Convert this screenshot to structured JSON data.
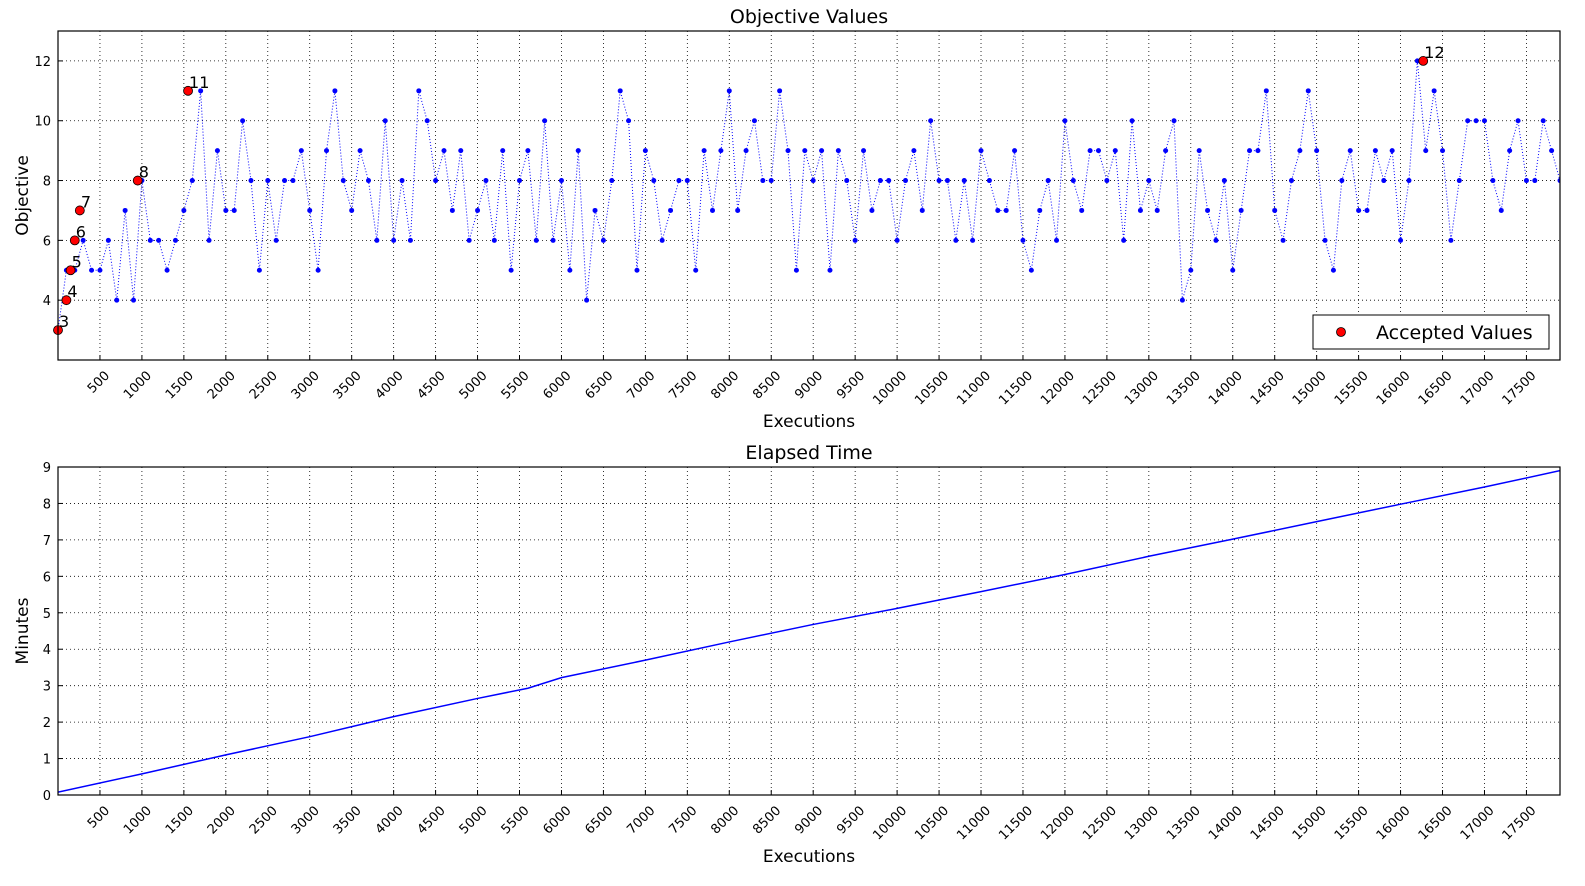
{
  "chart_data": [
    {
      "type": "line",
      "title": "Objective Values",
      "xlabel": "Executions",
      "ylabel": "Objective",
      "xlim": [
        0,
        17900
      ],
      "ylim": [
        2,
        13
      ],
      "xticks": [
        500,
        1000,
        1500,
        2000,
        2500,
        3000,
        3500,
        4000,
        4500,
        5000,
        5500,
        6000,
        6500,
        7000,
        7500,
        8000,
        8500,
        9000,
        9500,
        10000,
        10500,
        11000,
        11500,
        12000,
        12500,
        13000,
        13500,
        14000,
        14500,
        15000,
        15500,
        16000,
        16500,
        17000,
        17500
      ],
      "yticks": [
        4,
        6,
        8,
        10,
        12
      ],
      "grid": true,
      "legend": "lower right",
      "series": [
        {
          "color": "#0000ff",
          "linestyle": "dotted",
          "marker": true,
          "x": [
            0,
            100,
            200,
            300,
            400,
            500,
            600,
            700,
            800,
            900,
            1000,
            1100,
            1200,
            1300,
            1400,
            1500,
            1600,
            1700,
            1800,
            1900,
            2000,
            2100,
            2200,
            2300,
            2400,
            2500,
            2600,
            2700,
            2800,
            2900,
            3000,
            3100,
            3200,
            3300,
            3400,
            3500,
            3600,
            3700,
            3800,
            3900,
            4000,
            4100,
            4200,
            4300,
            4400,
            4500,
            4600,
            4700,
            4800,
            4900,
            5000,
            5100,
            5200,
            5300,
            5400,
            5500,
            5600,
            5700,
            5800,
            5900,
            6000,
            6100,
            6200,
            6300,
            6400,
            6500,
            6600,
            6700,
            6800,
            6900,
            7000,
            7100,
            7200,
            7300,
            7400,
            7500,
            7600,
            7700,
            7800,
            7900,
            8000,
            8100,
            8200,
            8300,
            8400,
            8500,
            8600,
            8700,
            8800,
            8900,
            9000,
            9100,
            9200,
            9300,
            9400,
            9500,
            9600,
            9700,
            9800,
            9900,
            10000,
            10100,
            10200,
            10300,
            10400,
            10500,
            10600,
            10700,
            10800,
            10900,
            11000,
            11100,
            11200,
            11300,
            11400,
            11500,
            11600,
            11700,
            11800,
            11900,
            12000,
            12100,
            12200,
            12300,
            12400,
            12500,
            12600,
            12700,
            12800,
            12900,
            13000,
            13100,
            13200,
            13300,
            13400,
            13500,
            13600,
            13700,
            13800,
            13900,
            14000,
            14100,
            14200,
            14300,
            14400,
            14500,
            14600,
            14700,
            14800,
            14900,
            15000,
            15100,
            15200,
            15300,
            15400,
            15500,
            15600,
            15700,
            15800,
            15900,
            16000,
            16100,
            16200,
            16300,
            16400,
            16500,
            16600,
            16700,
            16800,
            16900,
            17000,
            17100,
            17200,
            17300,
            17400,
            17500,
            17600,
            17700,
            17800,
            17900
          ],
          "values": [
            3,
            5,
            5,
            6,
            5,
            5,
            6,
            4,
            7,
            4,
            8,
            6,
            6,
            5,
            6,
            7,
            8,
            11,
            6,
            9,
            7,
            7,
            10,
            8,
            5,
            8,
            6,
            8,
            8,
            9,
            7,
            5,
            9,
            11,
            8,
            7,
            9,
            8,
            6,
            10,
            6,
            8,
            6,
            11,
            10,
            8,
            9,
            7,
            9,
            6,
            7,
            8,
            6,
            9,
            5,
            8,
            9,
            6,
            10,
            6,
            8,
            5,
            9,
            4,
            7,
            6,
            8,
            11,
            10,
            5,
            9,
            8,
            6,
            7,
            8,
            8,
            5,
            9,
            7,
            9,
            11,
            7,
            9,
            10,
            8,
            8,
            11,
            9,
            5,
            9,
            8,
            9,
            5,
            9,
            8,
            6,
            9,
            7,
            8,
            8,
            6,
            8,
            9,
            7,
            10,
            8,
            8,
            6,
            8,
            6,
            9,
            8,
            7,
            7,
            9,
            6,
            5,
            7,
            8,
            6,
            10,
            8,
            7,
            9,
            9,
            8,
            9,
            6,
            10,
            7,
            8,
            7,
            9,
            10,
            4,
            5,
            9,
            7,
            6,
            8,
            5,
            7,
            9,
            9,
            11,
            7,
            6,
            8,
            9,
            11,
            9,
            6,
            5,
            8,
            9,
            7,
            7,
            9,
            8,
            9,
            6,
            8,
            12,
            9,
            11,
            9,
            6,
            8,
            10,
            10,
            10,
            8,
            7,
            9,
            10,
            8,
            8,
            10,
            9,
            8
          ]
        },
        {
          "name": "Accepted Values",
          "color": "#ff0000",
          "marker": true,
          "point_labels": true,
          "x": [
            0,
            100,
            150,
            200,
            260,
            950,
            1550,
            16270
          ],
          "values": [
            3,
            4,
            5,
            6,
            7,
            8,
            11,
            12
          ]
        }
      ]
    },
    {
      "type": "line",
      "title": "Elapsed Time",
      "xlabel": "Executions",
      "ylabel": "Minutes",
      "xlim": [
        0,
        17900
      ],
      "ylim": [
        0,
        9
      ],
      "xticks": [
        500,
        1000,
        1500,
        2000,
        2500,
        3000,
        3500,
        4000,
        4500,
        5000,
        5500,
        6000,
        6500,
        7000,
        7500,
        8000,
        8500,
        9000,
        9500,
        10000,
        10500,
        11000,
        11500,
        12000,
        12500,
        13000,
        13500,
        14000,
        14500,
        15000,
        15500,
        16000,
        16500,
        17000,
        17500
      ],
      "yticks": [
        0,
        1,
        2,
        3,
        4,
        5,
        6,
        7,
        8,
        9
      ],
      "grid": true,
      "series": [
        {
          "color": "#0000ff",
          "linestyle": "solid",
          "x": [
            0,
            1000,
            2000,
            3000,
            4000,
            5000,
            5600,
            6000,
            7000,
            8000,
            9000,
            10000,
            11000,
            12000,
            13000,
            14000,
            15000,
            16000,
            17000,
            17900
          ],
          "values": [
            0.08,
            0.58,
            1.1,
            1.6,
            2.15,
            2.65,
            2.93,
            3.22,
            3.7,
            4.2,
            4.68,
            5.12,
            5.58,
            6.05,
            6.55,
            7.02,
            7.5,
            7.98,
            8.45,
            8.9
          ]
        }
      ]
    }
  ]
}
